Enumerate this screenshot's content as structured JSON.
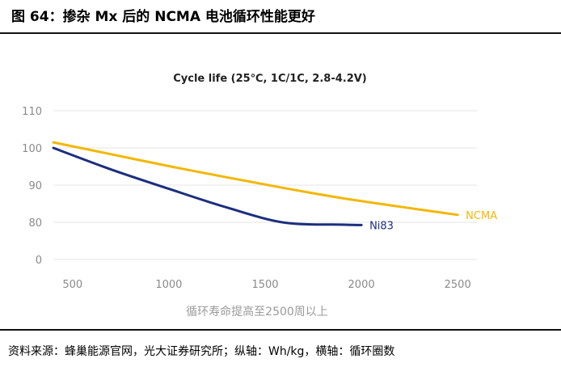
{
  "figure": {
    "title": "图 64：掺杂 Mx 后的 NCMA 电池循环性能更好",
    "source": "资料来源：蜂巢能源官网，光大证券研究所；纵轴：Wh/kg，横轴：循环圈数"
  },
  "chart_data": {
    "type": "line",
    "title": "Cycle life (25℃, 1C/1C, 2.8-4.2V)",
    "xlabel": "循环寿命提高至2500周以上",
    "ylabel": "",
    "x_ticks": [
      "500",
      "1000",
      "1500",
      "2000",
      "2500"
    ],
    "y_ticks": [
      "0",
      "80",
      "90",
      "100",
      "110"
    ],
    "xlim": [
      400,
      2600
    ],
    "ylim": [
      0,
      110
    ],
    "y_axis_break": "0 to 80 compressed",
    "grid": true,
    "series": [
      {
        "name": "NCMA",
        "color": "#f2b705",
        "x": [
          400,
          700,
          1000,
          1300,
          1600,
          1900,
          2200,
          2500
        ],
        "y": [
          101.5,
          98.3,
          95.1,
          92.1,
          89.2,
          86.5,
          84.2,
          82.0
        ]
      },
      {
        "name": "Ni83",
        "color": "#1c2e7e",
        "x": [
          400,
          700,
          1000,
          1300,
          1600,
          1900,
          2000
        ],
        "y": [
          100.0,
          94.2,
          89.0,
          84.0,
          79.3,
          75.0,
          74.0
        ]
      }
    ]
  }
}
